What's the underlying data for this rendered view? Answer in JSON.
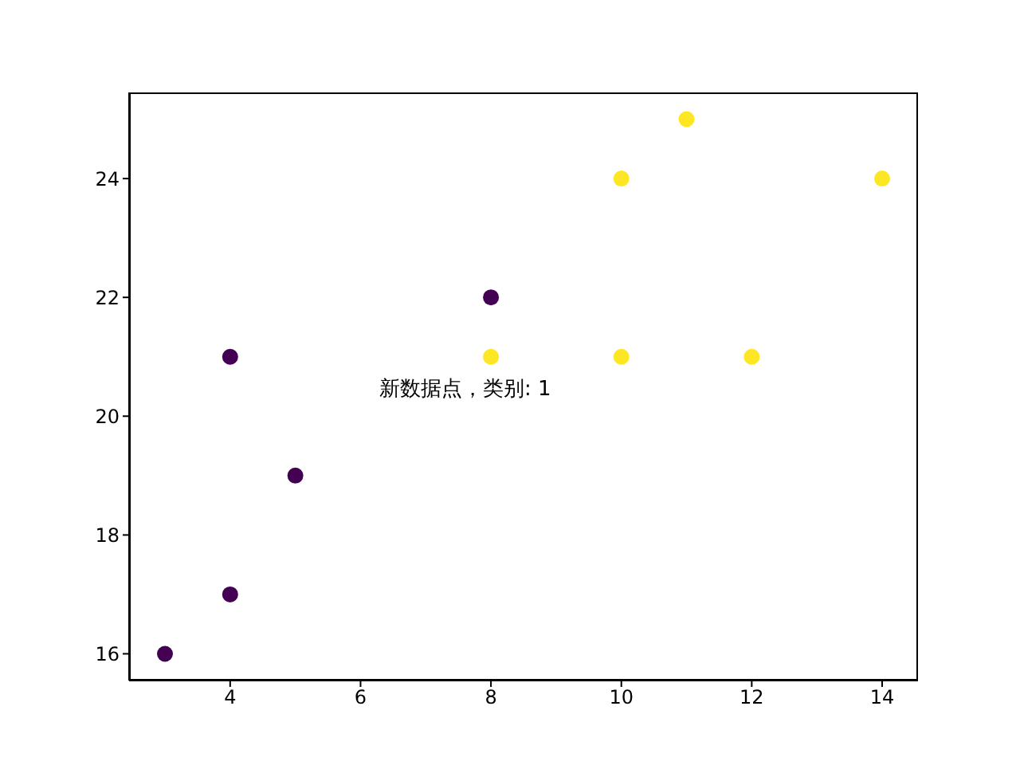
{
  "chart_data": {
    "type": "scatter",
    "marker": "circle",
    "grid": false,
    "legend": false,
    "xlim": [
      2.45,
      14.55
    ],
    "ylim": [
      15.55,
      25.45
    ],
    "xticks": [
      4,
      6,
      8,
      10,
      12,
      14
    ],
    "yticks": [
      16,
      18,
      20,
      22,
      24
    ],
    "series": [
      {
        "color": "#440154",
        "x": [
          3,
          4,
          4,
          5,
          8
        ],
        "values": [
          16,
          17,
          21,
          19,
          22
        ]
      },
      {
        "color": "#fde725",
        "x": [
          8,
          10,
          10,
          11,
          12,
          14
        ],
        "values": [
          21,
          21,
          24,
          25,
          21,
          24
        ]
      }
    ],
    "annotations": [
      "新数据点，类别: 1"
    ]
  }
}
